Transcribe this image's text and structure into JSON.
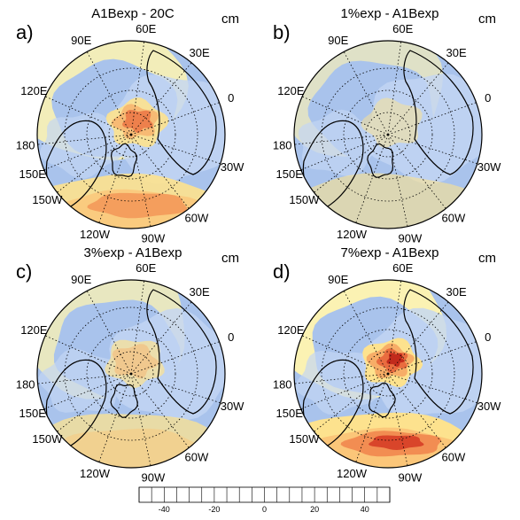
{
  "panels": [
    {
      "label": "a)",
      "title": "A1Bexp - 20C",
      "unit": "cm",
      "intensity": 1.0,
      "neg": 0.55
    },
    {
      "label": "b)",
      "title": "1%exp - A1Bexp",
      "unit": "cm",
      "intensity": 0.25,
      "neg": 0.2
    },
    {
      "label": "c)",
      "title": "3%exp - A1Bexp",
      "unit": "cm",
      "intensity": 0.6,
      "neg": 0.25
    },
    {
      "label": "d)",
      "title": "7%exp - A1Bexp",
      "unit": "cm",
      "intensity": 1.35,
      "neg": 0.35
    }
  ],
  "longitude_labels": [
    "150E",
    "120E",
    "90E",
    "60E",
    "30E",
    "0",
    "30W",
    "60W",
    "90W",
    "120W",
    "150W",
    "180"
  ],
  "colorbar": {
    "ticks": [
      "-40",
      "-20",
      "0",
      "20",
      "40"
    ],
    "colors": [
      "#0b1a5e",
      "#12348c",
      "#2450b5",
      "#3c6bd0",
      "#5684dd",
      "#6f98e3",
      "#8aabe8",
      "#a6c1ee",
      "#c3d6f4",
      "#fff8b0",
      "#fde28e",
      "#fbc679",
      "#f7a965",
      "#f18a4f",
      "#e8683c",
      "#d9452a",
      "#c22a1c",
      "#a01515",
      "#7a0c0c",
      "#5a0808"
    ]
  }
}
